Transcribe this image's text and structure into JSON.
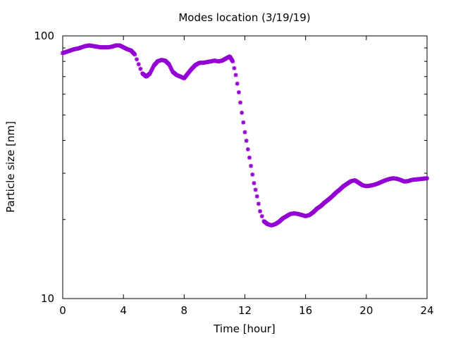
{
  "chart_data": {
    "type": "scatter",
    "title": "Modes location (3/19/19)",
    "xlabel": "Time [hour]",
    "ylabel": "Particle size [nm]",
    "xlim": [
      0,
      24
    ],
    "ylim": [
      10,
      100
    ],
    "yscale": "log",
    "grid": false,
    "legend": "none",
    "marker": "star",
    "color": "#9400d3",
    "x_ticks": [
      "0",
      "4",
      "8",
      "12",
      "16",
      "20",
      "24"
    ],
    "y_ticks": [
      "10",
      "100"
    ],
    "series": [
      {
        "x": [
          0,
          0.25,
          0.5,
          0.75,
          1.0,
          1.25,
          1.5,
          1.75,
          2.0,
          2.25,
          2.5,
          2.75,
          3.0,
          3.25,
          3.5,
          3.75,
          4.0,
          4.25,
          4.5,
          4.75,
          5.0,
          5.25,
          5.5,
          5.75,
          6.0,
          6.25,
          6.5,
          6.75,
          7.0,
          7.25,
          7.5,
          7.75,
          8.0,
          8.25,
          8.5,
          8.75,
          9.0,
          9.25,
          9.5,
          9.75,
          10.0,
          10.25,
          10.5,
          10.75,
          11.0,
          11.2,
          11.4,
          11.6,
          11.8,
          12.0,
          12.2,
          12.4,
          12.6,
          12.8,
          13.0,
          13.25,
          13.5,
          13.75,
          14.0,
          14.25,
          14.5,
          14.75,
          15.0,
          15.25,
          15.5,
          15.75,
          16.0,
          16.25,
          16.5,
          16.75,
          17.0,
          17.25,
          17.5,
          17.75,
          18.0,
          18.25,
          18.5,
          18.75,
          19.0,
          19.25,
          19.5,
          19.75,
          20.0,
          20.25,
          20.5,
          20.75,
          21.0,
          21.25,
          21.5,
          21.75,
          22.0,
          22.25,
          22.5,
          22.75,
          23.0,
          23.25,
          23.5,
          23.75,
          24.0
        ],
        "y": [
          86,
          87,
          88,
          89,
          89.5,
          90.5,
          91.5,
          92,
          91.5,
          91,
          90.5,
          90.5,
          90.5,
          91,
          92,
          92,
          90.5,
          89,
          88,
          85,
          78,
          72,
          70,
          72,
          77,
          80,
          81,
          80.5,
          78,
          73,
          71,
          70,
          69,
          72,
          75,
          77.5,
          79,
          79,
          79.5,
          80,
          80.5,
          80,
          80.5,
          82,
          83.5,
          80,
          71,
          61,
          51,
          43,
          37,
          32,
          27.5,
          24.5,
          21.5,
          19.7,
          19.2,
          19.0,
          19.2,
          19.6,
          20.2,
          20.6,
          21.0,
          21.1,
          21.0,
          20.8,
          20.6,
          20.8,
          21.3,
          22.0,
          22.5,
          23.2,
          23.8,
          24.5,
          25.3,
          26.0,
          26.8,
          27.4,
          28.0,
          28.2,
          27.6,
          27.0,
          26.8,
          26.9,
          27.1,
          27.4,
          27.8,
          28.2,
          28.5,
          28.7,
          28.6,
          28.3,
          27.9,
          28.0,
          28.3,
          28.4,
          28.5,
          28.6,
          28.7
        ]
      }
    ]
  }
}
